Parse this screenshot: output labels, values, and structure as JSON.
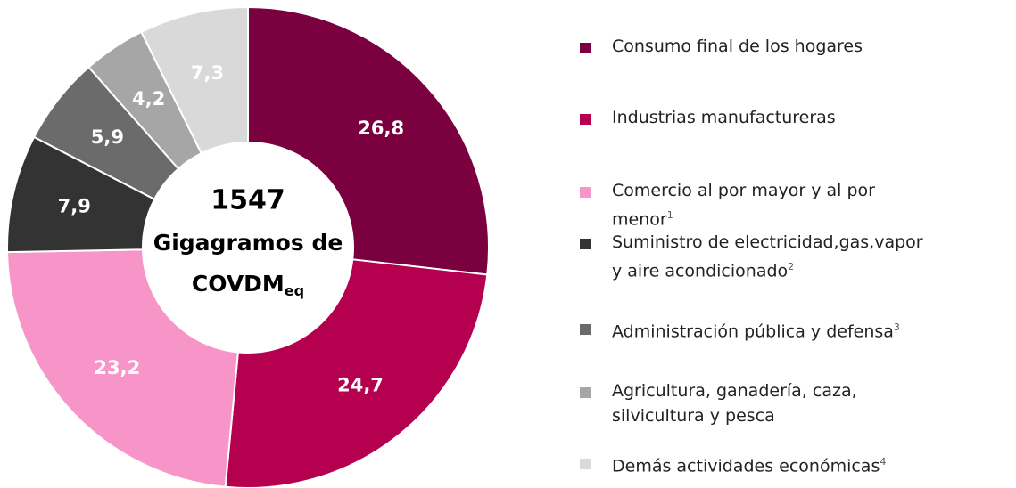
{
  "chart_data": {
    "type": "donut",
    "categories": [
      "Consumo final de los hogares",
      "Industrias manufactureras",
      "Comercio al por mayor y al por menor",
      "Suministro de electricidad,gas,vapor y aire acondicionado",
      "Administración pública y defensa",
      "Agricultura, ganadería, caza, silvicultura y pesca",
      "Demás actividades económicas"
    ],
    "category_notes": [
      null,
      null,
      "1",
      "2",
      "3",
      null,
      "4"
    ],
    "values": [
      26.8,
      24.7,
      23.2,
      7.9,
      5.9,
      4.2,
      7.3
    ],
    "value_labels": [
      "26,8",
      "24,7",
      "23,2",
      "7,9",
      "5,9",
      "4,2",
      "7,3"
    ],
    "colors": [
      "#7a0040",
      "#b5004f",
      "#f795c8",
      "#333333",
      "#6b6b6b",
      "#a6a6a6",
      "#d9d9d9"
    ],
    "center_lines": [
      "1547",
      "Gigagramos de",
      "COVDM"
    ],
    "center_subscript": "eq"
  }
}
